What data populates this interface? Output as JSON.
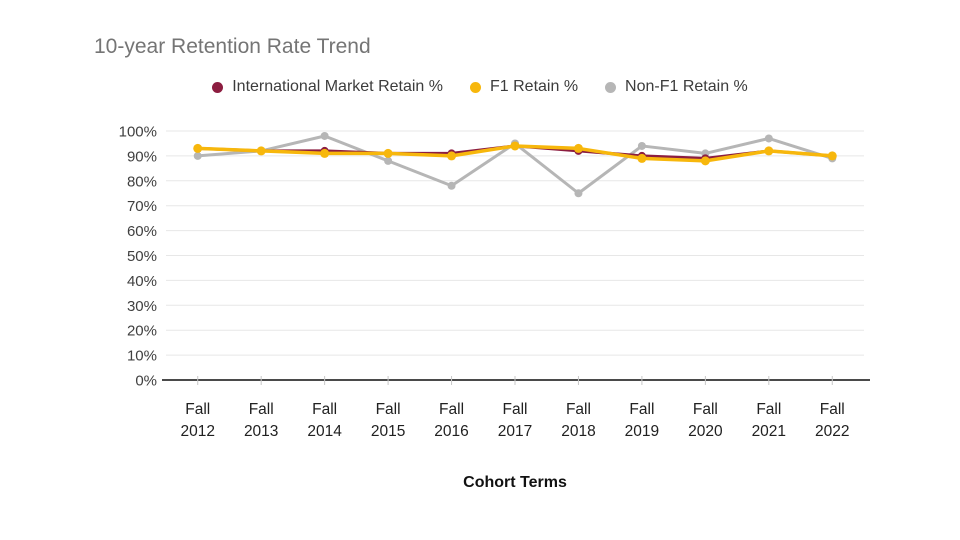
{
  "chart_data": {
    "type": "line",
    "title": "10-year Retention Rate Trend",
    "xlabel": "Cohort Terms",
    "ylabel": "",
    "categories": [
      "Fall 2012",
      "Fall 2013",
      "Fall 2014",
      "Fall 2015",
      "Fall 2016",
      "Fall 2017",
      "Fall 2018",
      "Fall 2019",
      "Fall 2020",
      "Fall 2021",
      "Fall 2022"
    ],
    "y_tick_labels": [
      "0%",
      "10%",
      "20%",
      "30%",
      "40%",
      "50%",
      "60%",
      "70%",
      "80%",
      "90%",
      "100%"
    ],
    "ylim": [
      0,
      100
    ],
    "y_tick_step": 10,
    "grid": true,
    "legend_position": "top",
    "series": [
      {
        "name": "International Market Retain %",
        "color": "#8C1D40",
        "values": [
          93,
          92,
          92,
          91,
          91,
          94,
          92,
          90,
          89,
          92,
          90
        ]
      },
      {
        "name": "F1 Retain %",
        "color": "#F7B70C",
        "values": [
          93,
          92,
          91,
          91,
          90,
          94,
          93,
          89,
          88,
          92,
          90
        ]
      },
      {
        "name": "Non-F1 Retain %",
        "color": "#B6B6B6",
        "values": [
          90,
          92,
          98,
          88,
          78,
          95,
          75,
          94,
          91,
          97,
          89
        ]
      }
    ],
    "colors": {
      "gridline": "#e7e7e7",
      "axis_line": "#4a4a4a",
      "tick": "#c7c7c7",
      "y_tick_text": "#3f3f3f",
      "x_tick_text": "#212121",
      "title_text": "#757575"
    }
  }
}
